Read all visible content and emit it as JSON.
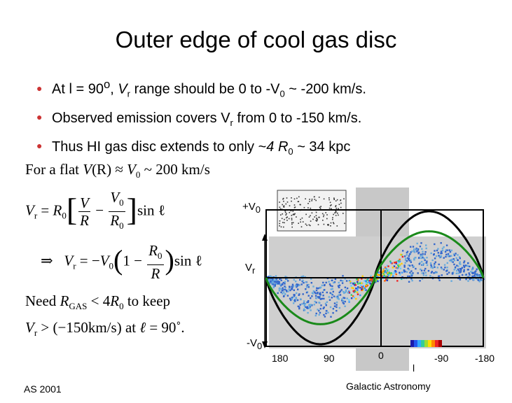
{
  "slide": {
    "title": "Outer edge of cool gas disc",
    "bullets": [
      {
        "pre": "At  l = 90",
        "sup": "o",
        "mid": ", ",
        "var": "V",
        "sub": "r",
        "post": " range should be 0 to -V",
        "sub2": "0",
        "end": " ~ -200 km/s."
      },
      {
        "pre": "Observed emission covers  V",
        "sub": "r",
        "post": " from 0 to -150 km/s."
      },
      {
        "pre": "Thus HI gas disc extends to only ~",
        "ital": "4 R",
        "sub": "0",
        "post": " ~ 34 kpc"
      }
    ],
    "equations": {
      "line1_pre": "For a flat ",
      "line1_fn": "V",
      "line1_arg": "(R)",
      "line1_approx": " ≈ ",
      "line1_v0": "V",
      "line1_v0sub": "0",
      "line1_post": " ~ 200 km/s",
      "line2_lhs": "V",
      "line2_lhs_sub": "r",
      "line2_eq": " = ",
      "line2_r0": "R",
      "line2_r0_sub": "0",
      "line2_frac1_num": "V",
      "line2_frac1_den": "R",
      "line2_minus": " − ",
      "line2_frac2_num": "V",
      "line2_frac2_num_sub": "0",
      "line2_frac2_den": "R",
      "line2_frac2_den_sub": "0",
      "line2_sin": "sin ℓ",
      "line3_arrow": "⇒",
      "line3_lhs": "V",
      "line3_lhs_sub": "r",
      "line3_eq": " = −",
      "line3_v0": "V",
      "line3_v0_sub": "0",
      "line3_one": "1 − ",
      "line3_frac_num": "R",
      "line3_frac_num_sub": "0",
      "line3_frac_den": "R",
      "line3_sin": "sin ℓ",
      "line4_need": "Need ",
      "line4_r": "R",
      "line4_rsub": "GAS",
      "line4_lt": " < 4",
      "line4_r0": "R",
      "line4_r0sub": "0",
      "line4_post": "   to keep",
      "line5_lhs": "V",
      "line5_lhs_sub": "r",
      "line5_gt": " > ",
      "line5_val": "(−150km/s)",
      "line5_at": "   at ",
      "line5_ell": "ℓ",
      "line5_deg": " = 90˚."
    },
    "plot": {
      "label_plus_v0": "+V",
      "label_plus_v0_sub": "0",
      "label_vr": "V",
      "label_vr_sub": "r",
      "label_minus_v0": "-V",
      "label_minus_v0_sub": "0",
      "x_ticks": [
        "180",
        "90",
        "0",
        "-90",
        "-180"
      ],
      "x_label": "l"
    },
    "footer_left": "AS 2001",
    "footer_right": "Galactic Astronomy"
  },
  "chart_data": {
    "type": "line",
    "title": "",
    "xlabel": "l",
    "ylabel": "Vr",
    "x_ticks": [
      "180",
      "90",
      "0",
      "-90",
      "-180"
    ],
    "y_ticks": [
      "+V0",
      "-V0"
    ],
    "series": [
      {
        "x": [
          180,
          135,
          90,
          45,
          0,
          -45,
          -90,
          -135,
          -180
        ],
        "y": [
          0,
          -0.7,
          -1,
          -0.7,
          0,
          0.7,
          1,
          0.7,
          0
        ]
      },
      {
        "x": [
          180,
          135,
          90,
          45,
          0,
          -45,
          -90,
          -135,
          -180
        ],
        "y": [
          0,
          -0.55,
          -0.75,
          -0.55,
          0,
          0.55,
          0.75,
          0.55,
          0
        ]
      }
    ],
    "colors": {
      "black_curve": "#000000",
      "green_curve": "#1a8a1a"
    },
    "grid": false
  }
}
